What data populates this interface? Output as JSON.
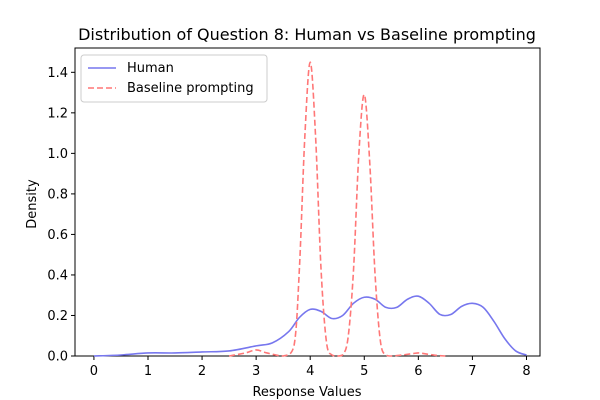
{
  "chart_data": {
    "type": "line",
    "title": "Distribution of Question 8: Human vs Baseline prompting",
    "xlabel": "Response Values",
    "ylabel": "Density",
    "xlim": [
      -0.35,
      8.25
    ],
    "ylim": [
      0,
      1.52
    ],
    "xticks": [
      0,
      1,
      2,
      3,
      4,
      5,
      6,
      7,
      8
    ],
    "yticks": [
      0.0,
      0.2,
      0.4,
      0.6,
      0.8,
      1.0,
      1.2,
      1.4
    ],
    "grid": false,
    "legend_position": "top-left",
    "series": [
      {
        "name": "Human",
        "color": "#7777ee",
        "style": "solid",
        "x": [
          0,
          0.5,
          1,
          1.5,
          2,
          2.5,
          3,
          3.3,
          3.6,
          3.8,
          4,
          4.2,
          4.4,
          4.6,
          4.8,
          5,
          5.2,
          5.4,
          5.6,
          5.8,
          6,
          6.2,
          6.4,
          6.6,
          6.8,
          7,
          7.2,
          7.4,
          7.6,
          7.8,
          8
        ],
        "y": [
          0.0,
          0.005,
          0.015,
          0.015,
          0.02,
          0.025,
          0.05,
          0.065,
          0.12,
          0.19,
          0.23,
          0.22,
          0.185,
          0.2,
          0.26,
          0.29,
          0.28,
          0.24,
          0.24,
          0.28,
          0.295,
          0.26,
          0.205,
          0.205,
          0.245,
          0.26,
          0.24,
          0.17,
          0.085,
          0.025,
          0.005
        ]
      },
      {
        "name": "Baseline prompting",
        "color": "#ff7777",
        "style": "dashed",
        "x": [
          2.5,
          2.8,
          3.0,
          3.2,
          3.5,
          3.7,
          3.8,
          3.9,
          4.0,
          4.1,
          4.2,
          4.3,
          4.4,
          4.5,
          4.6,
          4.7,
          4.8,
          4.9,
          5.0,
          5.1,
          5.2,
          5.3,
          5.4,
          5.5,
          5.7,
          5.9,
          6.0,
          6.1,
          6.3,
          6.5
        ],
        "y": [
          0.0,
          0.015,
          0.03,
          0.015,
          0.0,
          0.05,
          0.43,
          1.08,
          1.45,
          1.08,
          0.43,
          0.07,
          0.005,
          0.0,
          0.005,
          0.09,
          0.42,
          1.0,
          1.29,
          0.96,
          0.4,
          0.07,
          0.005,
          0.0,
          0.005,
          0.012,
          0.015,
          0.012,
          0.004,
          0.0
        ]
      }
    ]
  }
}
